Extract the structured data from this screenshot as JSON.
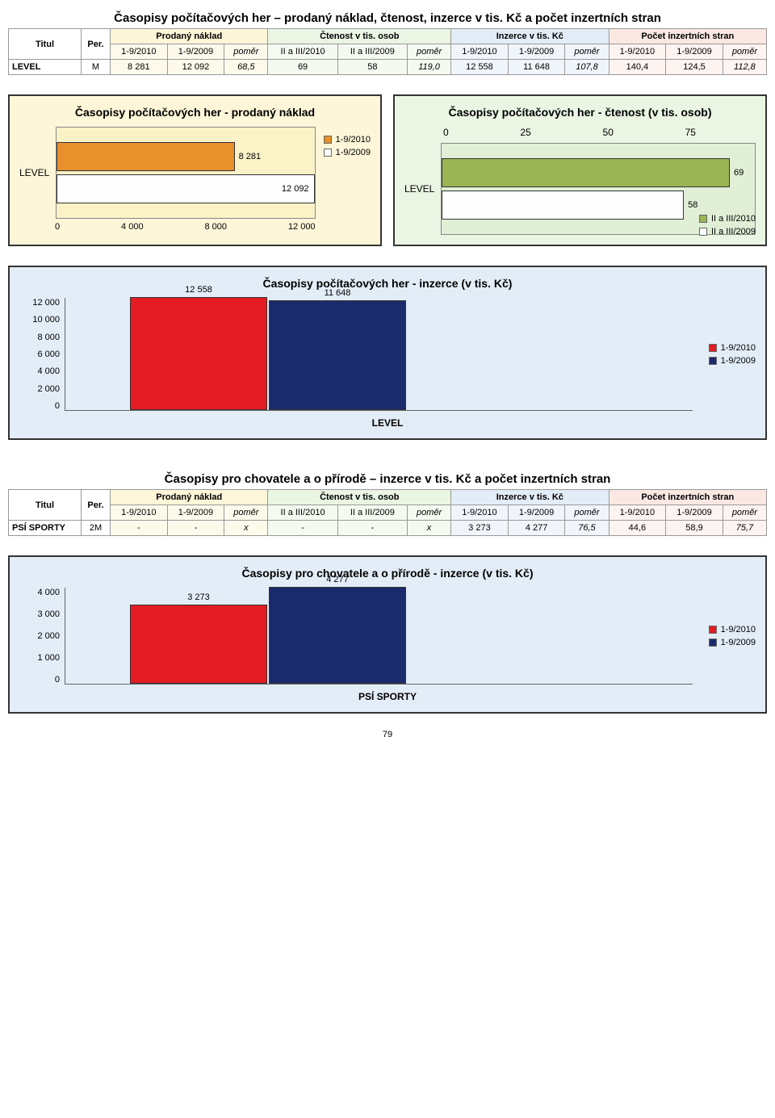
{
  "section1_title": "Časopisy počítačových her – prodaný náklad, čtenost, inzerce v tis. Kč a počet inzertních stran",
  "table1": {
    "col_titul": "Titul",
    "col_per": "Per.",
    "groups": [
      {
        "label": "Prodaný náklad",
        "cols": [
          "1-9/2010",
          "1-9/2009",
          "poměr"
        ],
        "bg": "#fef6d8",
        "bg_sub": "#fdfaec"
      },
      {
        "label": "Čtenost v tis. osob",
        "cols": [
          "II a III/2010",
          "II a III/2009",
          "poměr"
        ],
        "bg": "#eaf5e3",
        "bg_sub": "#f5faf1"
      },
      {
        "label": "Inzerce v tis. Kč",
        "cols": [
          "1-9/2010",
          "1-9/2009",
          "poměr"
        ],
        "bg": "#e3edf7",
        "bg_sub": "#f0f5fb"
      },
      {
        "label": "Počet inzertních stran",
        "cols": [
          "1-9/2010",
          "1-9/2009",
          "poměr"
        ],
        "bg": "#fbe8e3",
        "bg_sub": "#fdf3f0"
      }
    ],
    "rows": [
      {
        "titul": "LEVEL",
        "per": "M",
        "cells": [
          "8 281",
          "12 092",
          "68,5",
          "69",
          "58",
          "119,0",
          "12 558",
          "11 648",
          "107,8",
          "140,4",
          "124,5",
          "112,8"
        ]
      }
    ]
  },
  "chart1": {
    "type": "horizontal-bar",
    "title": "Časopisy počítačových her - prodaný náklad",
    "bg": "#fef6d8",
    "plot_bg": "#fbf2c8",
    "category": "LEVEL",
    "series": [
      {
        "label": "1-9/2010",
        "value": 8281,
        "display": "8 281",
        "color": "#e8902c"
      },
      {
        "label": "1-9/2009",
        "value": 12092,
        "display": "12 092",
        "color": "#fefefe"
      }
    ],
    "xmax": 12000,
    "xticks": [
      "0",
      "4 000",
      "8 000",
      "12 000"
    ],
    "legend_colors": [
      "#e8902c",
      "#fefefe"
    ]
  },
  "chart2": {
    "type": "horizontal-bar",
    "title": "Časopisy počítačových her - čtenost (v tis. osob)",
    "bg": "#eaf5e3",
    "plot_bg": "#e0efd6",
    "category": "LEVEL",
    "series": [
      {
        "label": "II a III/2010",
        "value": 69,
        "display": "69",
        "color": "#9bb554"
      },
      {
        "label": "II a III/2009",
        "value": 58,
        "display": "58",
        "color": "#fefefe"
      }
    ],
    "xmax": 75,
    "xticks": [
      "0",
      "25",
      "50",
      "75"
    ],
    "legend_colors": [
      "#9bb554",
      "#fefefe"
    ]
  },
  "chart3": {
    "type": "vertical-bar",
    "title": "Časopisy počítačových her - inzerce (v tis. Kč)",
    "bg": "#e3edf7",
    "category": "LEVEL",
    "series": [
      {
        "label": "1-9/2010",
        "value": 12558,
        "display": "12 558",
        "color": "#e31b23"
      },
      {
        "label": "1-9/2009",
        "value": 11648,
        "display": "11 648",
        "color": "#1a2a6c"
      }
    ],
    "ymax": 12000,
    "yticks": [
      "0",
      "2 000",
      "4 000",
      "6 000",
      "8 000",
      "10 000",
      "12 000"
    ],
    "legend_colors": [
      "#e31b23",
      "#1a2a6c"
    ]
  },
  "section2_title": "Časopisy pro chovatele a o přírodě – inzerce v tis. Kč a počet inzertních stran",
  "table2": {
    "col_titul": "Titul",
    "col_per": "Per.",
    "groups": [
      {
        "label": "Prodaný náklad",
        "cols": [
          "1-9/2010",
          "1-9/2009",
          "poměr"
        ],
        "bg": "#fef6d8",
        "bg_sub": "#fdfaec"
      },
      {
        "label": "Čtenost v tis. osob",
        "cols": [
          "II a III/2010",
          "II a III/2009",
          "poměr"
        ],
        "bg": "#eaf5e3",
        "bg_sub": "#f5faf1"
      },
      {
        "label": "Inzerce v tis. Kč",
        "cols": [
          "1-9/2010",
          "1-9/2009",
          "poměr"
        ],
        "bg": "#e3edf7",
        "bg_sub": "#f0f5fb"
      },
      {
        "label": "Počet inzertních stran",
        "cols": [
          "1-9/2010",
          "1-9/2009",
          "poměr"
        ],
        "bg": "#fbe8e3",
        "bg_sub": "#fdf3f0"
      }
    ],
    "rows": [
      {
        "titul": "PSÍ SPORTY",
        "per": "2M",
        "cells": [
          "-",
          "-",
          "x",
          "-",
          "-",
          "x",
          "3 273",
          "4 277",
          "76,5",
          "44,6",
          "58,9",
          "75,7"
        ]
      }
    ]
  },
  "chart4": {
    "type": "vertical-bar",
    "title": "Časopisy pro chovatele a o přírodě - inzerce (v tis. Kč)",
    "bg": "#e3edf7",
    "category": "PSÍ SPORTY",
    "series": [
      {
        "label": "1-9/2010",
        "value": 3273,
        "display": "3 273",
        "color": "#e31b23"
      },
      {
        "label": "1-9/2009",
        "value": 4277,
        "display": "4 277",
        "color": "#1a2a6c"
      }
    ],
    "ymax": 4000,
    "yticks": [
      "0",
      "1 000",
      "2 000",
      "3 000",
      "4 000"
    ],
    "legend_colors": [
      "#e31b23",
      "#1a2a6c"
    ]
  },
  "page_number": "79"
}
